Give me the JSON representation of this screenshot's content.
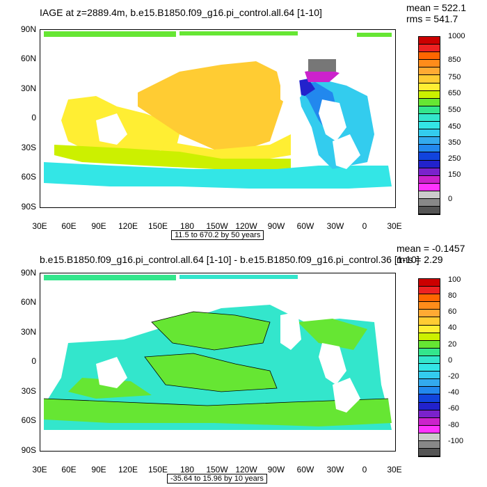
{
  "panels": [
    {
      "title": "IAGE at z=2889.4m, b.e15.B1850.f09_g16.pi_control.all.64 [1-10]",
      "mean": "mean = 522.1",
      "rms": "rms = 541.7",
      "range": "11.5 to 670.2 by 50 years",
      "colorbar_labels": [
        "1000",
        "850",
        "750",
        "650",
        "550",
        "450",
        "350",
        "250",
        "150",
        "0"
      ],
      "colors": [
        "#cc0000",
        "#ee2222",
        "#ff6600",
        "#ff8c1a",
        "#ffaa33",
        "#ffcc33",
        "#ffee33",
        "#ccf000",
        "#66e633",
        "#33e68c",
        "#33e6cc",
        "#33e6e6",
        "#33ccee",
        "#33aaee",
        "#2288ee",
        "#1144dd",
        "#2222cc",
        "#7a22cc",
        "#cc22cc",
        "#ff33ff",
        "#cccccc",
        "#888888",
        "#555555"
      ]
    },
    {
      "title": "b.e15.B1850.f09_g16.pi_control.all.64 [1-10] - b.e15.B1850.f09_g16.pi_control.36 [1-10]",
      "mean": "mean = -0.1457",
      "rms": "rms = 2.29",
      "range": "-35.64 to 15.96 by 10 years",
      "colorbar_labels": [
        "100",
        "80",
        "60",
        "40",
        "20",
        "0",
        "-20",
        "-40",
        "-60",
        "-80",
        "-100"
      ],
      "colors": [
        "#cc0000",
        "#ee2222",
        "#ff6600",
        "#ff8c1a",
        "#ffaa33",
        "#ffcc33",
        "#ffee33",
        "#ccf000",
        "#66e633",
        "#33e68c",
        "#33e6cc",
        "#33e6e6",
        "#33ccee",
        "#33aaee",
        "#2288ee",
        "#1144dd",
        "#2222cc",
        "#7a22cc",
        "#cc22cc",
        "#ff33ff",
        "#cccccc",
        "#888888",
        "#555555"
      ]
    }
  ],
  "axes": {
    "lat_labels": [
      "90N",
      "60N",
      "30N",
      "0",
      "30S",
      "60S",
      "90S"
    ],
    "lon_labels": [
      "30E",
      "60E",
      "90E",
      "120E",
      "150E",
      "180",
      "150W",
      "120W",
      "90W",
      "60W",
      "30W",
      "0",
      "30E"
    ]
  }
}
